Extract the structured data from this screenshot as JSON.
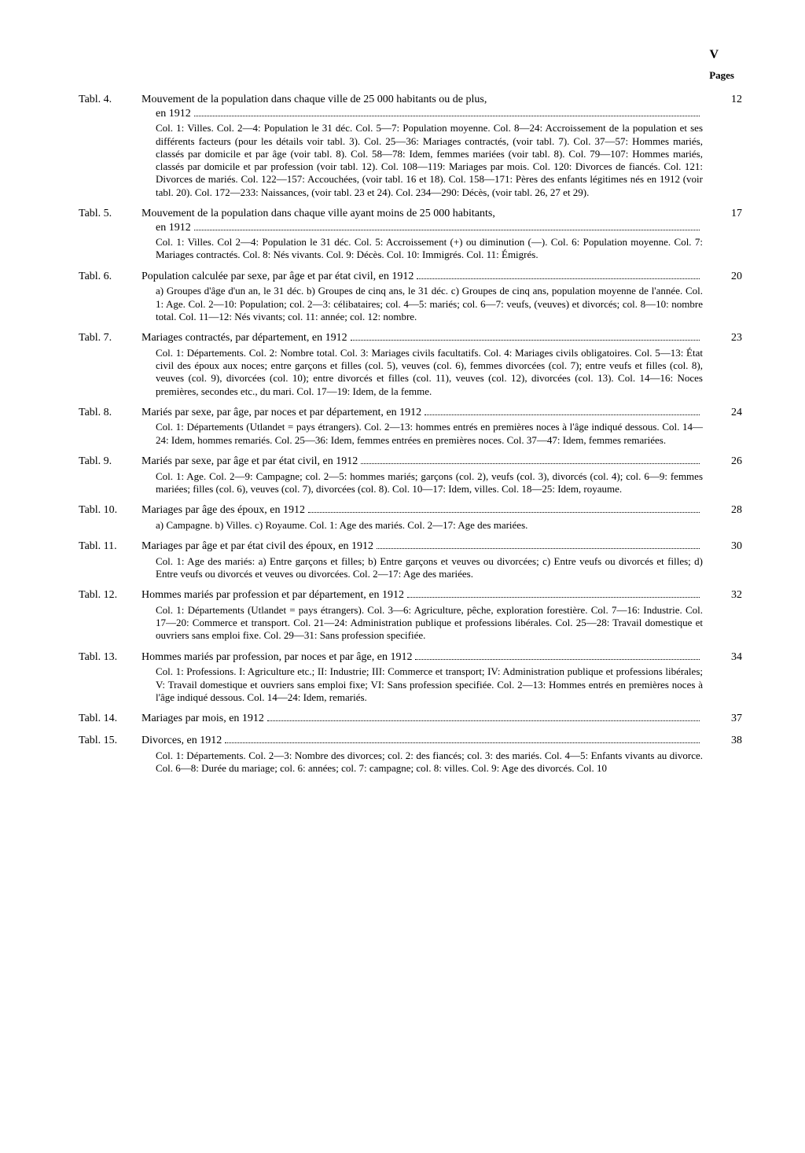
{
  "page_number": "V",
  "pages_label": "Pages",
  "entries": [
    {
      "label": "Tabl. 4.",
      "title": "Mouvement de la population dans chaque ville de 25 000 habitants ou de plus,",
      "title_cont": "en 1912",
      "page": "12",
      "desc": "Col. 1: Villes. Col. 2—4: Population le 31 déc. Col. 5—7: Population moyenne. Col. 8—24: Accroissement de la population et ses différents facteurs (pour les détails voir tabl. 3). Col. 25—36: Mariages contractés, (voir tabl. 7). Col. 37—57: Hommes mariés, classés par domicile et par âge (voir tabl. 8). Col. 58—78: Idem, femmes mariées (voir tabl. 8). Col. 79—107: Hommes mariés, classés par domicile et par profession (voir tabl. 12). Col. 108—119: Mariages par mois. Col. 120: Divorces de fiancés. Col. 121: Divorces de mariés. Col. 122—157: Accouchées, (voir tabl. 16 et 18). Col. 158—171: Pères des enfants légitimes nés en 1912 (voir tabl. 20). Col. 172—233: Naissances, (voir tabl. 23 et 24). Col. 234—290: Décès, (voir tabl. 26, 27 et 29)."
    },
    {
      "label": "Tabl. 5.",
      "title": "Mouvement de la population dans chaque ville ayant moins de 25 000 habitants,",
      "title_cont": "en 1912",
      "page": "17",
      "desc": "Col. 1: Villes. Col 2—4: Population le 31 déc. Col. 5: Accroissement (+) ou diminution (—). Col. 6: Population moyenne. Col. 7: Mariages contractés. Col. 8: Nés vivants. Col. 9: Décès. Col. 10: Immigrés. Col. 11: Émigrés."
    },
    {
      "label": "Tabl. 6.",
      "title": "Population calculée par sexe, par âge et par état civil, en 1912",
      "page": "20",
      "desc": "a) Groupes d'âge d'un an, le 31 déc. b) Groupes de cinq ans, le 31 déc. c) Groupes de cinq ans, population moyenne de l'année. Col. 1: Age. Col. 2—10: Population; col. 2—3: célibataires; col. 4—5: mariés; col. 6—7: veufs, (veuves) et divorcés; col. 8—10: nombre total. Col. 11—12: Nés vivants; col. 11: année; col. 12: nombre."
    },
    {
      "label": "Tabl. 7.",
      "title": "Mariages contractés, par département, en 1912",
      "page": "23",
      "desc": "Col. 1: Départements. Col. 2: Nombre total. Col. 3: Mariages civils facultatifs. Col. 4: Mariages civils obligatoires. Col. 5—13: État civil des époux aux noces; entre garçons et filles (col. 5), veuves (col. 6), femmes divorcées (col. 7); entre veufs et filles (col. 8), veuves (col. 9), divorcées (col. 10); entre divorcés et filles (col. 11), veuves (col. 12), divorcées (col. 13). Col. 14—16: Noces premières, secondes etc., du mari. Col. 17—19: Idem, de la femme."
    },
    {
      "label": "Tabl. 8.",
      "title": "Mariés par sexe, par âge, par noces et par département, en 1912",
      "page": "24",
      "desc": "Col. 1: Départements (Utlandet = pays étrangers). Col. 2—13: hommes entrés en premières noces à l'âge indiqué dessous. Col. 14—24: Idem, hommes remariés. Col. 25—36: Idem, femmes entrées en premières noces. Col. 37—47: Idem, femmes remariées."
    },
    {
      "label": "Tabl. 9.",
      "title": "Mariés par sexe, par âge et par état civil, en 1912",
      "page": "26",
      "desc": "Col. 1: Age. Col. 2—9: Campagne; col. 2—5: hommes mariés; garçons (col. 2), veufs (col. 3), divorcés (col. 4); col. 6—9: femmes mariées; filles (col. 6), veuves (col. 7), divorcées (col. 8). Col. 10—17: Idem, villes. Col. 18—25: Idem, royaume."
    },
    {
      "label": "Tabl. 10.",
      "title": "Mariages par âge des époux, en 1912",
      "page": "28",
      "desc": "a) Campagne. b) Villes. c) Royaume. Col. 1: Age des mariés. Col. 2—17: Age des mariées."
    },
    {
      "label": "Tabl. 11.",
      "title": "Mariages par âge et par état civil des époux, en 1912",
      "page": "30",
      "desc": "Col. 1: Age des mariés: a) Entre garçons et filles; b) Entre garçons et veuves ou divorcées; c) Entre veufs ou divorcés et filles; d) Entre veufs ou divorcés et veuves ou divorcées. Col. 2—17: Age des mariées."
    },
    {
      "label": "Tabl. 12.",
      "title": "Hommes mariés par profession et par département, en 1912",
      "page": "32",
      "desc": "Col. 1: Départements (Utlandet = pays étrangers). Col. 3—6: Agriculture, pêche, exploration forestière. Col. 7—16: Industrie. Col. 17—20: Commerce et transport. Col. 21—24: Administration publique et professions libérales. Col. 25—28: Travail domestique et ouvriers sans emploi fixe. Col. 29—31: Sans profession specifiée."
    },
    {
      "label": "Tabl. 13.",
      "title": "Hommes mariés par profession, par noces et par âge, en 1912",
      "page": "34",
      "desc": "Col. 1: Professions. I: Agriculture etc.; II: Industrie; III: Commerce et transport; IV: Administration publique et professions libérales; V: Travail domestique et ouvriers sans emploi fixe; VI: Sans profession specifiée. Col. 2—13: Hommes entrés en premières noces à l'âge indiqué dessous. Col. 14—24: Idem, remariés."
    },
    {
      "label": "Tabl. 14.",
      "title": "Mariages par mois, en 1912",
      "page": "37",
      "desc": ""
    },
    {
      "label": "Tabl. 15.",
      "title": "Divorces, en 1912",
      "page": "38",
      "desc": "Col. 1: Départements. Col. 2—3: Nombre des divorces; col. 2: des fiancés; col. 3: des mariés. Col. 4—5: Enfants vivants au divorce. Col. 6—8: Durée du mariage; col. 6: années; col. 7: campagne; col. 8: villes. Col. 9: Age des divorcés. Col. 10"
    }
  ]
}
